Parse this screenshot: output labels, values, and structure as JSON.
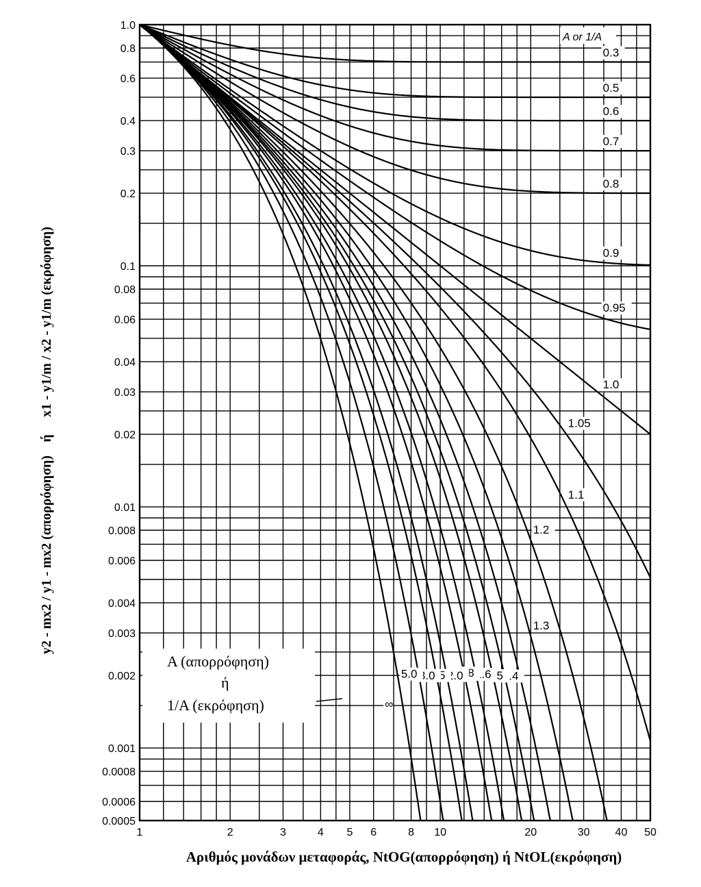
{
  "chart_data": {
    "type": "line",
    "x_scale": "log",
    "y_scale": "log",
    "xlim": [
      1,
      50
    ],
    "ylim": [
      0.0005,
      1.0
    ],
    "grid": true,
    "xlabel": "Αριθμός μονάδων μεταφοράς, NtOG(απορρόφηση) ή NtOL(εκρόφηση)",
    "ylabel_left": "y2 - mx2 / y1 - mx2 (απορρόφηση)",
    "ylabel_mid": "ή",
    "ylabel_right": "x1 - y1/m / x2 - y1/m (εκρόφηση)",
    "legend_title": "A or 1/A",
    "legend_box": [
      "A (απορρόφηση)",
      "ή",
      "1/A (εκρόφηση)"
    ],
    "x_ticks": [
      {
        "v": 1,
        "t": "1"
      },
      {
        "v": 2,
        "t": "2"
      },
      {
        "v": 3,
        "t": "3"
      },
      {
        "v": 4,
        "t": "4"
      },
      {
        "v": 5,
        "t": "5"
      },
      {
        "v": 6,
        "t": "6"
      },
      {
        "v": 8,
        "t": "8"
      },
      {
        "v": 10,
        "t": "10"
      },
      {
        "v": 20,
        "t": "20"
      },
      {
        "v": 30,
        "t": "30"
      },
      {
        "v": 40,
        "t": "40"
      },
      {
        "v": 50,
        "t": "50"
      }
    ],
    "y_ticks": [
      {
        "v": 1.0,
        "t": "1.0"
      },
      {
        "v": 0.8,
        "t": "0.8"
      },
      {
        "v": 0.6,
        "t": "0.6"
      },
      {
        "v": 0.4,
        "t": "0.4"
      },
      {
        "v": 0.3,
        "t": "0.3"
      },
      {
        "v": 0.2,
        "t": "0.2"
      },
      {
        "v": 0.1,
        "t": "0.1"
      },
      {
        "v": 0.08,
        "t": "0.08"
      },
      {
        "v": 0.06,
        "t": "0.06"
      },
      {
        "v": 0.04,
        "t": "0.04"
      },
      {
        "v": 0.03,
        "t": "0.03"
      },
      {
        "v": 0.02,
        "t": "0.02"
      },
      {
        "v": 0.01,
        "t": "0.01"
      },
      {
        "v": 0.008,
        "t": "0.008"
      },
      {
        "v": 0.006,
        "t": "0.006"
      },
      {
        "v": 0.004,
        "t": "0.004"
      },
      {
        "v": 0.003,
        "t": "0.003"
      },
      {
        "v": 0.002,
        "t": "0.002"
      },
      {
        "v": 0.001,
        "t": "0.001"
      },
      {
        "v": 0.0008,
        "t": "0.0008"
      },
      {
        "v": 0.0006,
        "t": "0.0006"
      },
      {
        "v": 0.0005,
        "t": "0.0005"
      }
    ],
    "x_grid": [
      1,
      1.2,
      1.4,
      1.6,
      1.8,
      2,
      2.5,
      3,
      3.5,
      4,
      4.5,
      5,
      6,
      7,
      8,
      9,
      10,
      12,
      14,
      16,
      18,
      20,
      25,
      30,
      35,
      40,
      45,
      50
    ],
    "y_grid": [
      1.0,
      0.9,
      0.8,
      0.7,
      0.6,
      0.5,
      0.4,
      0.3,
      0.25,
      0.2,
      0.15,
      0.1,
      0.09,
      0.08,
      0.07,
      0.06,
      0.05,
      0.04,
      0.03,
      0.025,
      0.02,
      0.015,
      0.01,
      0.009,
      0.008,
      0.007,
      0.006,
      0.005,
      0.004,
      0.003,
      0.0025,
      0.002,
      0.0015,
      0.001,
      0.0009,
      0.0008,
      0.0007,
      0.0006,
      0.0005
    ],
    "series": [
      {
        "name": "0.3",
        "label": "0.3"
      },
      {
        "name": "0.5",
        "label": "0.5"
      },
      {
        "name": "0.6",
        "label": "0.6"
      },
      {
        "name": "0.7",
        "label": "0.7"
      },
      {
        "name": "0.8",
        "label": "0.8"
      },
      {
        "name": "0.9",
        "label": "0.9"
      },
      {
        "name": "0.95",
        "label": "0.95"
      },
      {
        "name": "1.0",
        "label": "1.0"
      },
      {
        "name": "1.05",
        "label": "1.05"
      },
      {
        "name": "1.1",
        "label": "1.1"
      },
      {
        "name": "1.2",
        "label": "1.2"
      },
      {
        "name": "1.3",
        "label": "1.3"
      },
      {
        "name": "1.4",
        "label": "1.4"
      },
      {
        "name": "1.5",
        "label": "1.5"
      },
      {
        "name": "1.6",
        "label": "1.6"
      },
      {
        "name": "1.8",
        "label": "1.8"
      },
      {
        "name": "2.0",
        "label": "2.0"
      },
      {
        "name": "2.5",
        "label": "2.5"
      },
      {
        "name": "3.0",
        "label": "3.0"
      },
      {
        "name": "5.0",
        "label": "5.0"
      },
      {
        "name": "∞",
        "label": "∞"
      }
    ]
  }
}
